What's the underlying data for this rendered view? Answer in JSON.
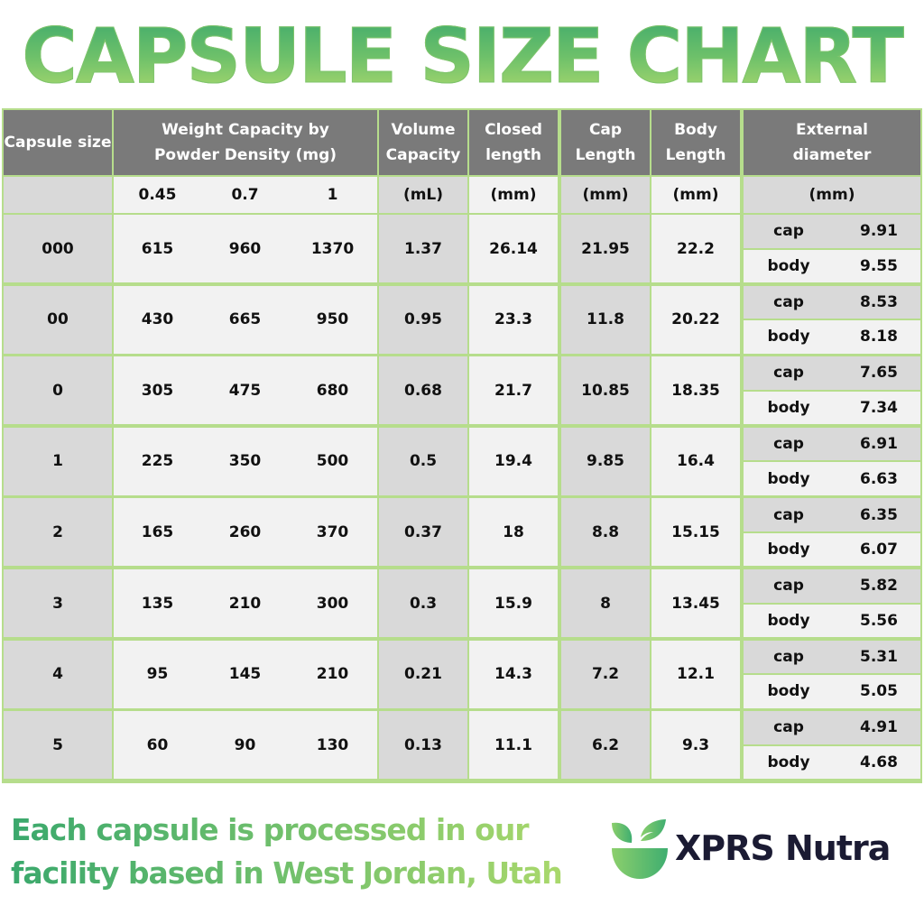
{
  "title": "CAPSULE SIZE CHART",
  "headers": {
    "capsule_size": "Capsule size",
    "weight": "Weight Capacity by Powder Density (mg)",
    "volume": "Volume Capacity",
    "closed": "Closed length",
    "cap": "Cap Length",
    "body": "Body Length",
    "diameter": "External diameter"
  },
  "units": {
    "densities": [
      "0.45",
      "0.7",
      "1"
    ],
    "volume": "(mL)",
    "closed": "(mm)",
    "cap": "(mm)",
    "body": "(mm)",
    "diameter": "(mm)"
  },
  "sublabels": {
    "cap": "cap",
    "body": "body"
  },
  "rows": [
    {
      "size": "000",
      "w": [
        "615",
        "960",
        "1370"
      ],
      "vol": "1.37",
      "closed": "26.14",
      "cap": "21.95",
      "body": "22.2",
      "d_cap": "9.91",
      "d_body": "9.55"
    },
    {
      "size": "00",
      "w": [
        "430",
        "665",
        "950"
      ],
      "vol": "0.95",
      "closed": "23.3",
      "cap": "11.8",
      "body": "20.22",
      "d_cap": "8.53",
      "d_body": "8.18"
    },
    {
      "size": "0",
      "w": [
        "305",
        "475",
        "680"
      ],
      "vol": "0.68",
      "closed": "21.7",
      "cap": "10.85",
      "body": "18.35",
      "d_cap": "7.65",
      "d_body": "7.34"
    },
    {
      "size": "1",
      "w": [
        "225",
        "350",
        "500"
      ],
      "vol": "0.5",
      "closed": "19.4",
      "cap": "9.85",
      "body": "16.4",
      "d_cap": "6.91",
      "d_body": "6.63"
    },
    {
      "size": "2",
      "w": [
        "165",
        "260",
        "370"
      ],
      "vol": "0.37",
      "closed": "18",
      "cap": "8.8",
      "body": "15.15",
      "d_cap": "6.35",
      "d_body": "6.07"
    },
    {
      "size": "3",
      "w": [
        "135",
        "210",
        "300"
      ],
      "vol": "0.3",
      "closed": "15.9",
      "cap": "8",
      "body": "13.45",
      "d_cap": "5.82",
      "d_body": "5.56"
    },
    {
      "size": "4",
      "w": [
        "95",
        "145",
        "210"
      ],
      "vol": "0.21",
      "closed": "14.3",
      "cap": "7.2",
      "body": "12.1",
      "d_cap": "5.31",
      "d_body": "5.05"
    },
    {
      "size": "5",
      "w": [
        "60",
        "90",
        "130"
      ],
      "vol": "0.13",
      "closed": "11.1",
      "cap": "6.2",
      "body": "9.3",
      "d_cap": "4.91",
      "d_body": "4.68"
    }
  ],
  "footer": {
    "line1": "Each capsule is processed in our",
    "line2": "facility based in West Jordan, Utah"
  },
  "brand": "XPRS Nutra",
  "colors": {
    "header": "#7a7a7a",
    "border": "#b6dd8c",
    "title_green": "#3aa86c",
    "brand": "#1b1b33"
  }
}
